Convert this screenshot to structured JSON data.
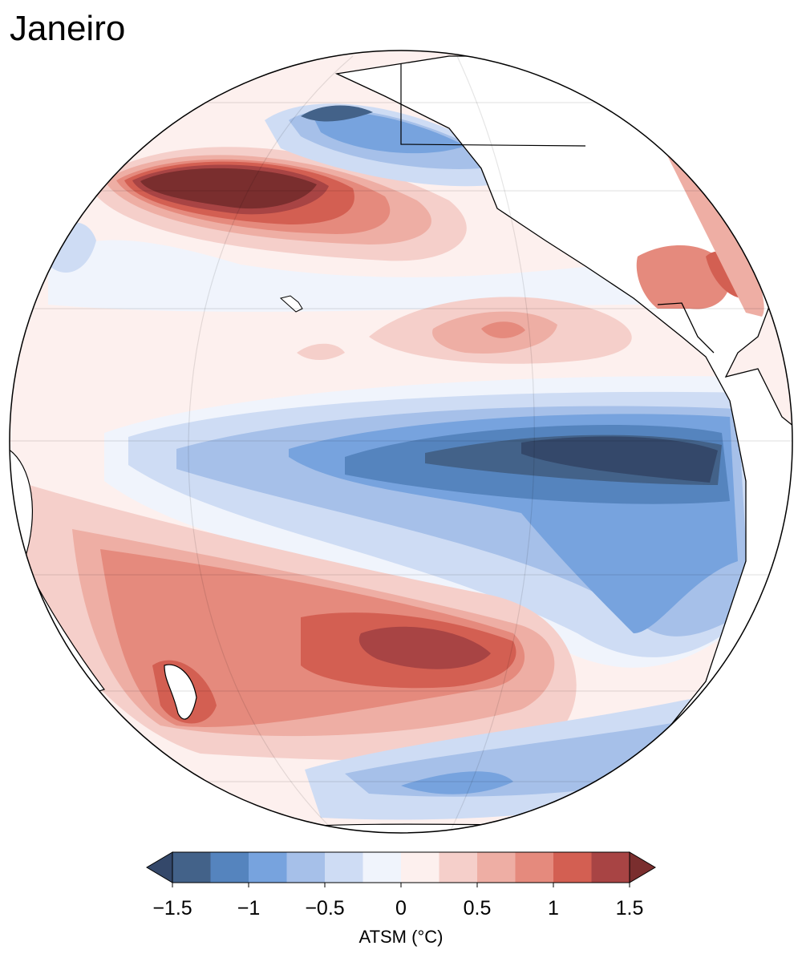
{
  "title": "Janeiro",
  "colorbar": {
    "label": "ATSM (°C)",
    "levels": [
      -1.5,
      -1.25,
      -1,
      -0.75,
      -0.5,
      -0.25,
      0,
      0.25,
      0.5,
      0.75,
      1,
      1.25,
      1.5
    ],
    "colors": [
      "#436289",
      "#5584be",
      "#77a3de",
      "#a6c0e9",
      "#cedcf4",
      "#f0f4fc",
      "#fdf0ee",
      "#f5cfca",
      "#eeaea4",
      "#e58a7d",
      "#d35f52",
      "#a84444"
    ],
    "extend_colors": [
      "#34486a",
      "#7a2e2e"
    ],
    "ticks": [
      {
        "value": -1.5,
        "label": "−1.5"
      },
      {
        "value": -1,
        "label": "−1"
      },
      {
        "value": -0.5,
        "label": "−0.5"
      },
      0,
      0.5,
      1,
      1.5
    ]
  }
}
